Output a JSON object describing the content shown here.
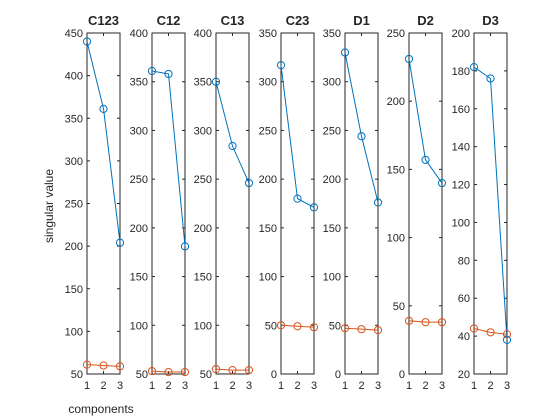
{
  "figure": {
    "ylabel": "singular value",
    "xlabel": "components",
    "colors": {
      "series1": "#0072BD",
      "series2": "#D95319",
      "axis": "#262626"
    }
  },
  "chart_data": [
    {
      "type": "line",
      "title": "C123",
      "x": [
        1,
        2,
        3
      ],
      "ylim": [
        50,
        450
      ],
      "yticks": [
        50,
        100,
        150,
        200,
        250,
        300,
        350,
        400,
        450
      ],
      "xticks": [
        1,
        2,
        3
      ],
      "series": [
        {
          "values": [
            440,
            361,
            204
          ]
        },
        {
          "values": [
            61,
            60,
            59
          ]
        }
      ]
    },
    {
      "type": "line",
      "title": "C12",
      "x": [
        1,
        2,
        3
      ],
      "ylim": [
        50,
        400
      ],
      "yticks": [
        50,
        100,
        150,
        200,
        250,
        300,
        350,
        400
      ],
      "xticks": [
        1,
        2,
        3
      ],
      "series": [
        {
          "values": [
            361,
            358,
            181
          ]
        },
        {
          "values": [
            53,
            52,
            52
          ]
        }
      ]
    },
    {
      "type": "line",
      "title": "C13",
      "x": [
        1,
        2,
        3
      ],
      "ylim": [
        50,
        400
      ],
      "yticks": [
        50,
        100,
        150,
        200,
        250,
        300,
        350,
        400
      ],
      "xticks": [
        1,
        2,
        3
      ],
      "series": [
        {
          "values": [
            350,
            284,
            246
          ]
        },
        {
          "values": [
            55,
            54,
            54
          ]
        }
      ]
    },
    {
      "type": "line",
      "title": "C23",
      "x": [
        1,
        2,
        3
      ],
      "ylim": [
        0,
        350
      ],
      "yticks": [
        0,
        50,
        100,
        150,
        200,
        250,
        300,
        350
      ],
      "xticks": [
        1,
        2,
        3
      ],
      "series": [
        {
          "values": [
            317,
            180,
            171
          ]
        },
        {
          "values": [
            50,
            49,
            48
          ]
        }
      ]
    },
    {
      "type": "line",
      "title": "D1",
      "x": [
        1,
        2,
        3
      ],
      "ylim": [
        0,
        350
      ],
      "yticks": [
        0,
        50,
        100,
        150,
        200,
        250,
        300,
        350
      ],
      "xticks": [
        1,
        2,
        3
      ],
      "series": [
        {
          "values": [
            330,
            244,
            176
          ]
        },
        {
          "values": [
            47,
            46,
            45
          ]
        }
      ]
    },
    {
      "type": "line",
      "title": "D2",
      "x": [
        1,
        2,
        3
      ],
      "ylim": [
        0,
        250
      ],
      "yticks": [
        0,
        50,
        100,
        150,
        200,
        250
      ],
      "xticks": [
        1,
        2,
        3
      ],
      "series": [
        {
          "values": [
            231,
            157,
            140
          ]
        },
        {
          "values": [
            39,
            38,
            38
          ]
        }
      ]
    },
    {
      "type": "line",
      "title": "D3",
      "x": [
        1,
        2,
        3
      ],
      "ylim": [
        20,
        200
      ],
      "yticks": [
        20,
        40,
        60,
        80,
        100,
        120,
        140,
        160,
        180,
        200
      ],
      "xticks": [
        1,
        2,
        3
      ],
      "series": [
        {
          "values": [
            182,
            176,
            38
          ]
        },
        {
          "values": [
            44,
            42,
            41
          ]
        }
      ]
    }
  ]
}
